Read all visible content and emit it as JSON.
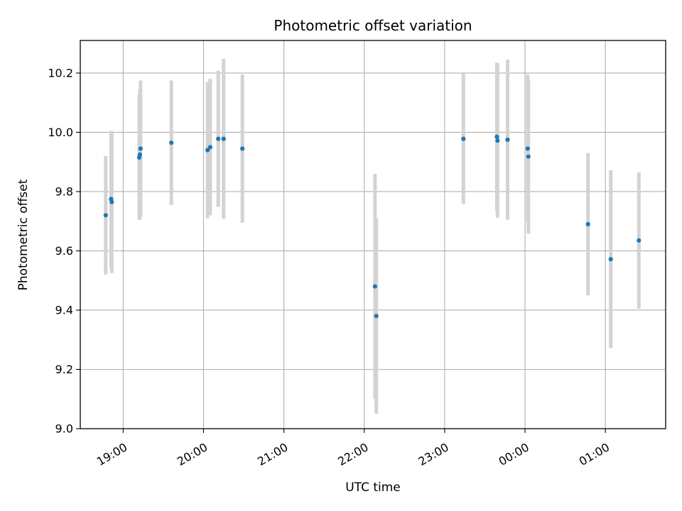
{
  "chart_data": {
    "type": "scatter",
    "title": "Photometric offset variation",
    "xlabel": "UTC time",
    "ylabel": "Photometric offset",
    "xlim": [
      "2024-01-01T18:28:00",
      "2024-01-02T01:45:00"
    ],
    "ylim": [
      9.0,
      10.31
    ],
    "grid": true,
    "x_ticks": [
      {
        "value": "2024-01-01T19:00:00",
        "label": "19:00"
      },
      {
        "value": "2024-01-01T20:00:00",
        "label": "20:00"
      },
      {
        "value": "2024-01-01T21:00:00",
        "label": "21:00"
      },
      {
        "value": "2024-01-01T22:00:00",
        "label": "22:00"
      },
      {
        "value": "2024-01-01T23:00:00",
        "label": "23:00"
      },
      {
        "value": "2024-01-02T00:00:00",
        "label": "00:00"
      },
      {
        "value": "2024-01-02T01:00:00",
        "label": "01:00"
      }
    ],
    "y_ticks": [
      {
        "value": 9.0,
        "label": "9.0"
      },
      {
        "value": 9.2,
        "label": "9.2"
      },
      {
        "value": 9.4,
        "label": "9.4"
      },
      {
        "value": 9.6,
        "label": "9.6"
      },
      {
        "value": 9.8,
        "label": "9.8"
      },
      {
        "value": 10.0,
        "label": "10.0"
      },
      {
        "value": 10.2,
        "label": "10.2"
      }
    ],
    "marker_color": "#1f77b4",
    "errorbar_color": "#d3d3d3",
    "points": [
      {
        "x": "2024-01-01T18:47:00",
        "y": 9.72,
        "yerr": 0.2
      },
      {
        "x": "2024-01-01T18:51:00",
        "y": 9.775,
        "yerr": 0.23
      },
      {
        "x": "2024-01-01T18:51:30",
        "y": 9.765,
        "yerr": 0.24
      },
      {
        "x": "2024-01-01T19:12:00",
        "y": 9.915,
        "yerr": 0.21
      },
      {
        "x": "2024-01-01T19:12:30",
        "y": 9.925,
        "yerr": 0.22
      },
      {
        "x": "2024-01-01T19:13:00",
        "y": 9.945,
        "yerr": 0.23
      },
      {
        "x": "2024-01-01T19:36:00",
        "y": 9.965,
        "yerr": 0.21
      },
      {
        "x": "2024-01-01T20:03:00",
        "y": 9.94,
        "yerr": 0.23
      },
      {
        "x": "2024-01-01T20:05:00",
        "y": 9.95,
        "yerr": 0.23
      },
      {
        "x": "2024-01-01T20:11:00",
        "y": 9.978,
        "yerr": 0.23
      },
      {
        "x": "2024-01-01T20:15:00",
        "y": 9.978,
        "yerr": 0.27
      },
      {
        "x": "2024-01-01T20:29:00",
        "y": 9.945,
        "yerr": 0.25
      },
      {
        "x": "2024-01-01T22:08:00",
        "y": 9.48,
        "yerr": 0.38
      },
      {
        "x": "2024-01-01T22:09:00",
        "y": 9.38,
        "yerr": 0.33
      },
      {
        "x": "2024-01-01T23:14:00",
        "y": 9.978,
        "yerr": 0.22
      },
      {
        "x": "2024-01-01T23:39:00",
        "y": 9.985,
        "yerr": 0.25
      },
      {
        "x": "2024-01-01T23:39:30",
        "y": 9.972,
        "yerr": 0.26
      },
      {
        "x": "2024-01-01T23:47:00",
        "y": 9.975,
        "yerr": 0.27
      },
      {
        "x": "2024-01-02T00:02:00",
        "y": 9.945,
        "yerr": 0.25
      },
      {
        "x": "2024-01-02T00:02:30",
        "y": 9.918,
        "yerr": 0.26
      },
      {
        "x": "2024-01-02T00:47:00",
        "y": 9.69,
        "yerr": 0.24
      },
      {
        "x": "2024-01-02T01:04:00",
        "y": 9.572,
        "yerr": 0.3
      },
      {
        "x": "2024-01-02T01:25:00",
        "y": 9.635,
        "yerr": 0.23
      }
    ]
  }
}
